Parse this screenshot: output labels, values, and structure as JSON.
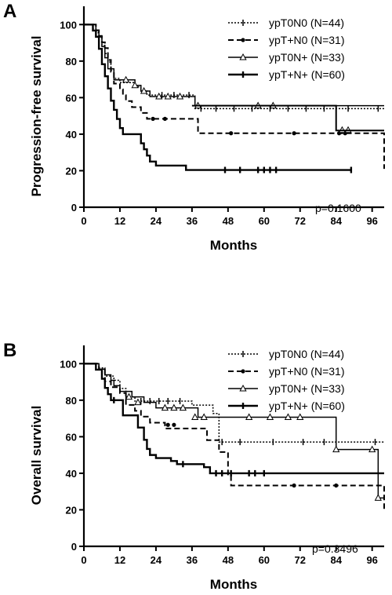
{
  "chart_data": [
    {
      "panel_label": "A",
      "type": "line",
      "subtype": "kaplan-meier",
      "title": "",
      "xlabel": "Months",
      "ylabel": "Progression-free survival",
      "xlim": [
        0,
        100
      ],
      "ylim": [
        0,
        110
      ],
      "xticks": [
        0,
        12,
        24,
        36,
        48,
        60,
        72,
        84,
        96
      ],
      "yticks": [
        0,
        20,
        40,
        60,
        80,
        100
      ],
      "grid": false,
      "legend_position": "top-right",
      "annotation": "p=0.1600",
      "series": [
        {
          "name": "ypT0N0 (N=44)",
          "style": "dotted",
          "marker": "tick",
          "steps": [
            [
              0,
              100
            ],
            [
              2,
              100
            ],
            [
              3,
              97.7
            ],
            [
              4,
              95.5
            ],
            [
              5,
              93.2
            ],
            [
              6,
              88.6
            ],
            [
              7,
              84.1
            ],
            [
              8,
              79.5
            ],
            [
              9,
              75
            ],
            [
              10,
              70.5
            ],
            [
              12,
              68.2
            ],
            [
              15,
              68.2
            ],
            [
              17,
              65.9
            ],
            [
              19,
              63.6
            ],
            [
              21,
              61.4
            ],
            [
              36,
              61.4
            ],
            [
              37,
              54
            ],
            [
              100,
              54
            ]
          ],
          "censored": [
            [
              26,
              61.4
            ],
            [
              30,
              61.4
            ],
            [
              35,
              61.4
            ],
            [
              39,
              54
            ],
            [
              44,
              54
            ],
            [
              50,
              54
            ],
            [
              56,
              54
            ],
            [
              62,
              54
            ],
            [
              68,
              54
            ],
            [
              74,
              54
            ],
            [
              80,
              54
            ],
            [
              88,
              54
            ],
            [
              98,
              54
            ]
          ]
        },
        {
          "name": "ypT+N0 (N=31)",
          "style": "dashed",
          "marker": "circle",
          "steps": [
            [
              0,
              100
            ],
            [
              3,
              100
            ],
            [
              4,
              96.8
            ],
            [
              5,
              93.5
            ],
            [
              6,
              90.3
            ],
            [
              7,
              87.1
            ],
            [
              8,
              80.6
            ],
            [
              9,
              74.2
            ],
            [
              10,
              67.7
            ],
            [
              12,
              64.5
            ],
            [
              13,
              61.3
            ],
            [
              14,
              58.1
            ],
            [
              16,
              54.8
            ],
            [
              19,
              51.6
            ],
            [
              21,
              48.4
            ],
            [
              31,
              48.4
            ],
            [
              38,
              40.5
            ],
            [
              97,
              40.5
            ],
            [
              100,
              21
            ]
          ],
          "censored": [
            [
              23,
              48.4
            ],
            [
              27,
              48.4
            ],
            [
              49,
              40.5
            ],
            [
              70,
              40.5
            ],
            [
              85,
              40.5
            ],
            [
              87,
              40.5
            ]
          ]
        },
        {
          "name": "ypT0N+ (N=33)",
          "style": "solid-thin",
          "marker": "triangle",
          "steps": [
            [
              0,
              100
            ],
            [
              3,
              100
            ],
            [
              4,
              97
            ],
            [
              5,
              93.9
            ],
            [
              6,
              87.9
            ],
            [
              7,
              81.8
            ],
            [
              8,
              75.8
            ],
            [
              10,
              69.7
            ],
            [
              15,
              69.7
            ],
            [
              17,
              66.7
            ],
            [
              19,
              63.6
            ],
            [
              22,
              60.6
            ],
            [
              36,
              60.6
            ],
            [
              37,
              55.6
            ],
            [
              100,
              55.6
            ]
          ],
          "censored": [
            [
              14,
              69.7
            ],
            [
              17,
              66.7
            ],
            [
              20,
              63.6
            ],
            [
              25,
              60.6
            ],
            [
              28,
              60.6
            ],
            [
              32,
              60.6
            ],
            [
              38,
              55.6
            ],
            [
              58,
              55.6
            ],
            [
              63,
              55.6
            ],
            [
              86,
              42.2
            ],
            [
              88,
              42.2
            ]
          ]
        },
        {
          "name": "ypT+N+ (N=60)",
          "style": "solid-thick",
          "marker": "tick",
          "steps": [
            [
              0,
              100
            ],
            [
              2,
              100
            ],
            [
              3,
              96.7
            ],
            [
              4,
              93.3
            ],
            [
              5,
              86.7
            ],
            [
              6,
              78.3
            ],
            [
              7,
              71.7
            ],
            [
              8,
              65
            ],
            [
              9,
              58.3
            ],
            [
              10,
              53.3
            ],
            [
              11,
              48.3
            ],
            [
              12,
              43.3
            ],
            [
              13,
              40
            ],
            [
              18,
              40
            ],
            [
              19,
              35
            ],
            [
              20,
              31.7
            ],
            [
              21,
              28.3
            ],
            [
              22,
              25
            ],
            [
              24,
              22.8
            ],
            [
              30,
              22.8
            ],
            [
              34,
              20.4
            ],
            [
              89,
              20.4
            ]
          ],
          "censored": [
            [
              47,
              20.4
            ],
            [
              52,
              20.4
            ],
            [
              58,
              20.4
            ],
            [
              60,
              20.4
            ],
            [
              62,
              20.4
            ],
            [
              64,
              20.4
            ],
            [
              89,
              20.4
            ]
          ]
        }
      ],
      "extra_line": {
        "note": "solid line continuation",
        "steps": [
          [
            36,
            55.6
          ],
          [
            84,
            55.6
          ],
          [
            84,
            42
          ],
          [
            100,
            42
          ]
        ]
      }
    },
    {
      "panel_label": "B",
      "type": "line",
      "subtype": "kaplan-meier",
      "title": "",
      "xlabel": "Months",
      "ylabel": "Overall survival",
      "xlim": [
        0,
        100
      ],
      "ylim": [
        0,
        110
      ],
      "xticks": [
        0,
        12,
        24,
        36,
        48,
        60,
        72,
        84,
        96
      ],
      "yticks": [
        0,
        20,
        40,
        60,
        80,
        100
      ],
      "grid": false,
      "legend_position": "top-right",
      "annotation": "p=0.3496",
      "series": [
        {
          "name": "ypT0N0 (N=44)",
          "style": "dotted",
          "marker": "tick",
          "steps": [
            [
              0,
              100
            ],
            [
              3,
              100
            ],
            [
              5,
              97.7
            ],
            [
              7,
              93.2
            ],
            [
              10,
              90.9
            ],
            [
              12,
              86.4
            ],
            [
              14,
              81.8
            ],
            [
              17,
              79.5
            ],
            [
              30,
              79.5
            ],
            [
              36,
              77.3
            ],
            [
              43,
              72.7
            ],
            [
              45,
              57.1
            ],
            [
              100,
              57.1
            ]
          ],
          "censored": [
            [
              14,
              81.8
            ],
            [
              19,
              79.5
            ],
            [
              22,
              79.5
            ],
            [
              25,
              79.5
            ],
            [
              28,
              79.5
            ],
            [
              32,
              79.5
            ],
            [
              46,
              57.1
            ],
            [
              52,
              57.1
            ],
            [
              63,
              57.1
            ],
            [
              73,
              57.1
            ],
            [
              80,
              57.1
            ],
            [
              97,
              57.1
            ]
          ]
        },
        {
          "name": "ypT+N0 (N=31)",
          "style": "dashed",
          "marker": "circle",
          "steps": [
            [
              0,
              100
            ],
            [
              3,
              100
            ],
            [
              5,
              96.8
            ],
            [
              7,
              90.3
            ],
            [
              9,
              87.1
            ],
            [
              12,
              83.9
            ],
            [
              14,
              77.4
            ],
            [
              17,
              74.2
            ],
            [
              19,
              71
            ],
            [
              22,
              67.7
            ],
            [
              27,
              64.5
            ],
            [
              36,
              64.5
            ],
            [
              41,
              58.1
            ],
            [
              45,
              51.6
            ],
            [
              48,
              38.7
            ],
            [
              49,
              33.3
            ],
            [
              99,
              33.3
            ],
            [
              100,
              20
            ]
          ],
          "censored": [
            [
              28,
              66.5
            ],
            [
              30,
              66.5
            ],
            [
              70,
              33.3
            ],
            [
              84,
              33.3
            ]
          ]
        },
        {
          "name": "ypT0N+ (N=33)",
          "style": "solid-thin",
          "marker": "triangle",
          "steps": [
            [
              0,
              100
            ],
            [
              4,
              100
            ],
            [
              5,
              97
            ],
            [
              7,
              93.9
            ],
            [
              9,
              90.9
            ],
            [
              10,
              87.9
            ],
            [
              12,
              84.8
            ],
            [
              16,
              81.8
            ],
            [
              20,
              78.8
            ],
            [
              24,
              75.8
            ],
            [
              36,
              75.8
            ],
            [
              38,
              70.7
            ],
            [
              84,
              70.7
            ],
            [
              84,
              53
            ],
            [
              96,
              53
            ],
            [
              98,
              26.5
            ],
            [
              100,
              26.5
            ]
          ],
          "censored": [
            [
              15,
              81.8
            ],
            [
              18,
              78.8
            ],
            [
              27,
              75.8
            ],
            [
              30,
              75.8
            ],
            [
              33,
              75.8
            ],
            [
              37,
              70.7
            ],
            [
              40,
              70.7
            ],
            [
              55,
              70.7
            ],
            [
              62,
              70.7
            ],
            [
              68,
              70.7
            ],
            [
              72,
              70.7
            ],
            [
              84,
              53
            ],
            [
              96,
              53
            ],
            [
              98,
              26.5
            ]
          ]
        },
        {
          "name": "ypT+N+ (N=60)",
          "style": "solid-thick",
          "marker": "tick",
          "steps": [
            [
              0,
              100
            ],
            [
              3,
              100
            ],
            [
              4,
              96.7
            ],
            [
              6,
              91.7
            ],
            [
              7,
              86.7
            ],
            [
              8,
              83.3
            ],
            [
              9,
              80
            ],
            [
              12,
              80
            ],
            [
              13,
              71.7
            ],
            [
              16,
              71.7
            ],
            [
              18,
              65
            ],
            [
              20,
              58.3
            ],
            [
              21,
              53.3
            ],
            [
              22,
              50
            ],
            [
              24,
              48.3
            ],
            [
              27,
              48.3
            ],
            [
              29,
              46.7
            ],
            [
              31,
              45
            ],
            [
              36,
              45
            ],
            [
              40,
              43.3
            ],
            [
              42,
              40
            ],
            [
              100,
              40
            ]
          ],
          "censored": [
            [
              10,
              80
            ],
            [
              33,
              45
            ],
            [
              44,
              40
            ],
            [
              46,
              40
            ],
            [
              49,
              40
            ],
            [
              55,
              40
            ],
            [
              57,
              40
            ],
            [
              60,
              40
            ]
          ]
        }
      ]
    }
  ]
}
